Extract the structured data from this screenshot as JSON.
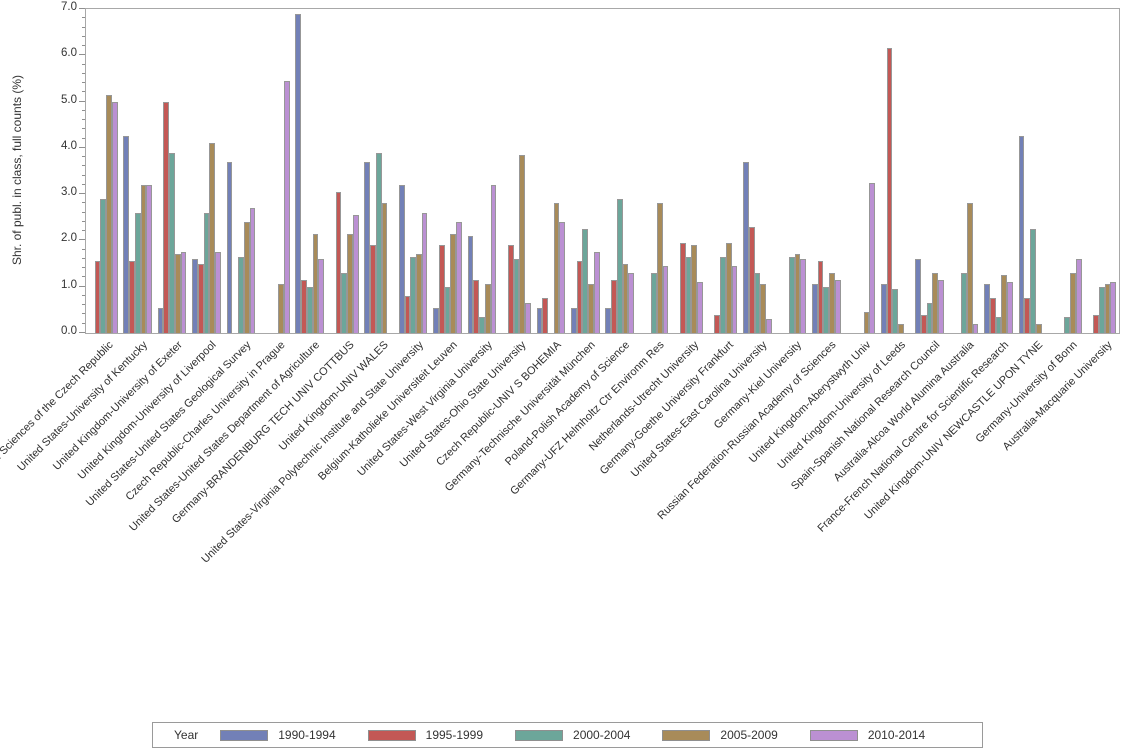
{
  "chart_data": {
    "type": "bar",
    "title": "",
    "xlabel": "",
    "ylabel": "Shr. of publ. in class, full counts (%)",
    "ylim": [
      0,
      7
    ],
    "ytick_labels": [
      "0.0",
      "1.0",
      "2.0",
      "3.0",
      "4.0",
      "5.0",
      "6.0",
      "7.0"
    ],
    "minor_tick_step": 0.2,
    "grid": false,
    "legend_position": "bottom",
    "legend_title": "Year",
    "categories": [
      "Czech Republic-Academy of Sciences of the Czech Republic",
      "United States-University of Kentucky",
      "United Kingdom-University of Exeter",
      "United Kingdom-University of Liverpool",
      "United States-United States Geological Survey",
      "Czech Republic-Charles University in Prague",
      "United States-United States Department of Agriculture",
      "Germany-BRANDENBURG TECH UNIV COTTBUS",
      "United Kingdom-UNIV WALES",
      "United States-Virginia Polytechnic Institute and State University",
      "Belgium-Katholieke Universiteit Leuven",
      "United States-West Virginia University",
      "United States-Ohio State University",
      "Czech Republic-UNIV S BOHEMIA",
      "Germany-Technische Universität München",
      "Poland-Polish Academy of Science",
      "Germany-UFZ Helmholtz Ctr Environm Res",
      "Netherlands-Utrecht University",
      "Germany-Goethe University Frankfurt",
      "United States-East Carolina University",
      "Germany-Kiel University",
      "Russian Federation-Russian Academy of Sciences",
      "United Kingdom-Aberystwyth Univ",
      "United Kingdom-University of Leeds",
      "Spain-Spanish National Research Council",
      "Australia-Alcoa World Alumina Australia",
      "France-French National Centre for Scientific Research",
      "United Kingdom-UNIV NEWCASTLE UPON TYNE",
      "Germany-University of Bonn",
      "Australia-Macquarie University"
    ],
    "series": [
      {
        "name": "1990-1994",
        "color": "#7280B7",
        "values": [
          null,
          4.25,
          0.55,
          1.6,
          3.7,
          null,
          6.9,
          null,
          3.7,
          3.2,
          0.55,
          2.1,
          null,
          0.55,
          0.55,
          0.55,
          null,
          null,
          null,
          3.7,
          null,
          1.05,
          null,
          1.05,
          1.6,
          null,
          1.05,
          4.25,
          null,
          null
        ]
      },
      {
        "name": "1995-1999",
        "color": "#C35855",
        "values": [
          1.55,
          1.55,
          5.0,
          1.5,
          null,
          null,
          1.15,
          3.05,
          1.9,
          0.8,
          1.9,
          1.15,
          1.9,
          0.75,
          1.55,
          1.15,
          null,
          1.95,
          0.4,
          2.3,
          null,
          1.55,
          null,
          6.15,
          0.4,
          null,
          0.75,
          0.75,
          null,
          0.4
        ]
      },
      {
        "name": "2000-2004",
        "color": "#6CA69A",
        "values": [
          2.9,
          2.6,
          3.9,
          2.6,
          1.65,
          null,
          1.0,
          1.3,
          3.9,
          1.65,
          1.0,
          0.35,
          1.6,
          null,
          2.25,
          2.9,
          1.3,
          1.65,
          1.65,
          1.3,
          1.65,
          1.0,
          null,
          0.95,
          0.65,
          1.3,
          0.35,
          2.25,
          0.35,
          1.0
        ]
      },
      {
        "name": "2005-2009",
        "color": "#A88B59",
        "values": [
          5.15,
          3.2,
          1.7,
          4.1,
          2.4,
          1.05,
          2.15,
          2.15,
          2.8,
          1.7,
          2.15,
          1.05,
          3.85,
          2.8,
          1.05,
          1.5,
          2.8,
          1.9,
          1.95,
          1.05,
          1.7,
          1.3,
          0.45,
          0.2,
          1.3,
          2.8,
          1.25,
          0.2,
          1.3,
          1.05
        ]
      },
      {
        "name": "2010-2014",
        "color": "#BB90D3",
        "values": [
          5.0,
          3.2,
          1.75,
          1.75,
          2.7,
          5.45,
          1.6,
          2.55,
          null,
          2.6,
          2.4,
          3.2,
          0.65,
          2.4,
          1.75,
          1.3,
          1.45,
          1.1,
          1.45,
          0.3,
          1.6,
          1.15,
          3.25,
          null,
          1.15,
          0.2,
          1.1,
          null,
          1.6,
          1.1
        ]
      }
    ]
  }
}
